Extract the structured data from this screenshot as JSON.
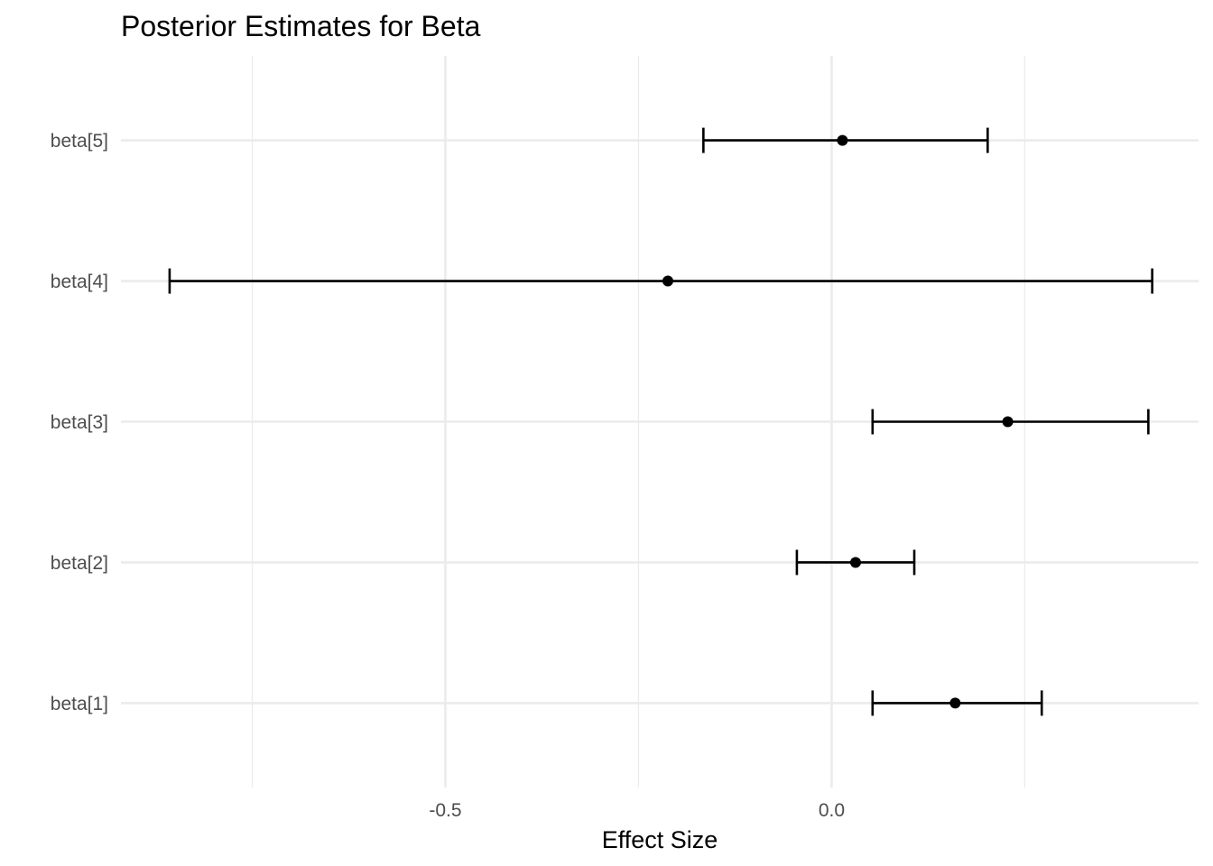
{
  "chart_data": {
    "type": "errorbar",
    "title": "Posterior Estimates for Beta",
    "xlabel": "Effect Size",
    "ylabel": "",
    "categories": [
      "beta[1]",
      "beta[2]",
      "beta[3]",
      "beta[4]",
      "beta[5]"
    ],
    "estimates": [
      0.16,
      0.031,
      0.228,
      -0.212,
      0.014
    ],
    "lower": [
      0.053,
      -0.045,
      0.053,
      -0.857,
      -0.166
    ],
    "upper": [
      0.272,
      0.107,
      0.41,
      0.415,
      0.202
    ],
    "x_ticks": [
      -0.5,
      0.0
    ],
    "x_tick_labels": [
      "-0.5",
      "0.0"
    ],
    "xlim": [
      -0.92,
      0.475
    ],
    "grid": true,
    "legend": "none"
  }
}
